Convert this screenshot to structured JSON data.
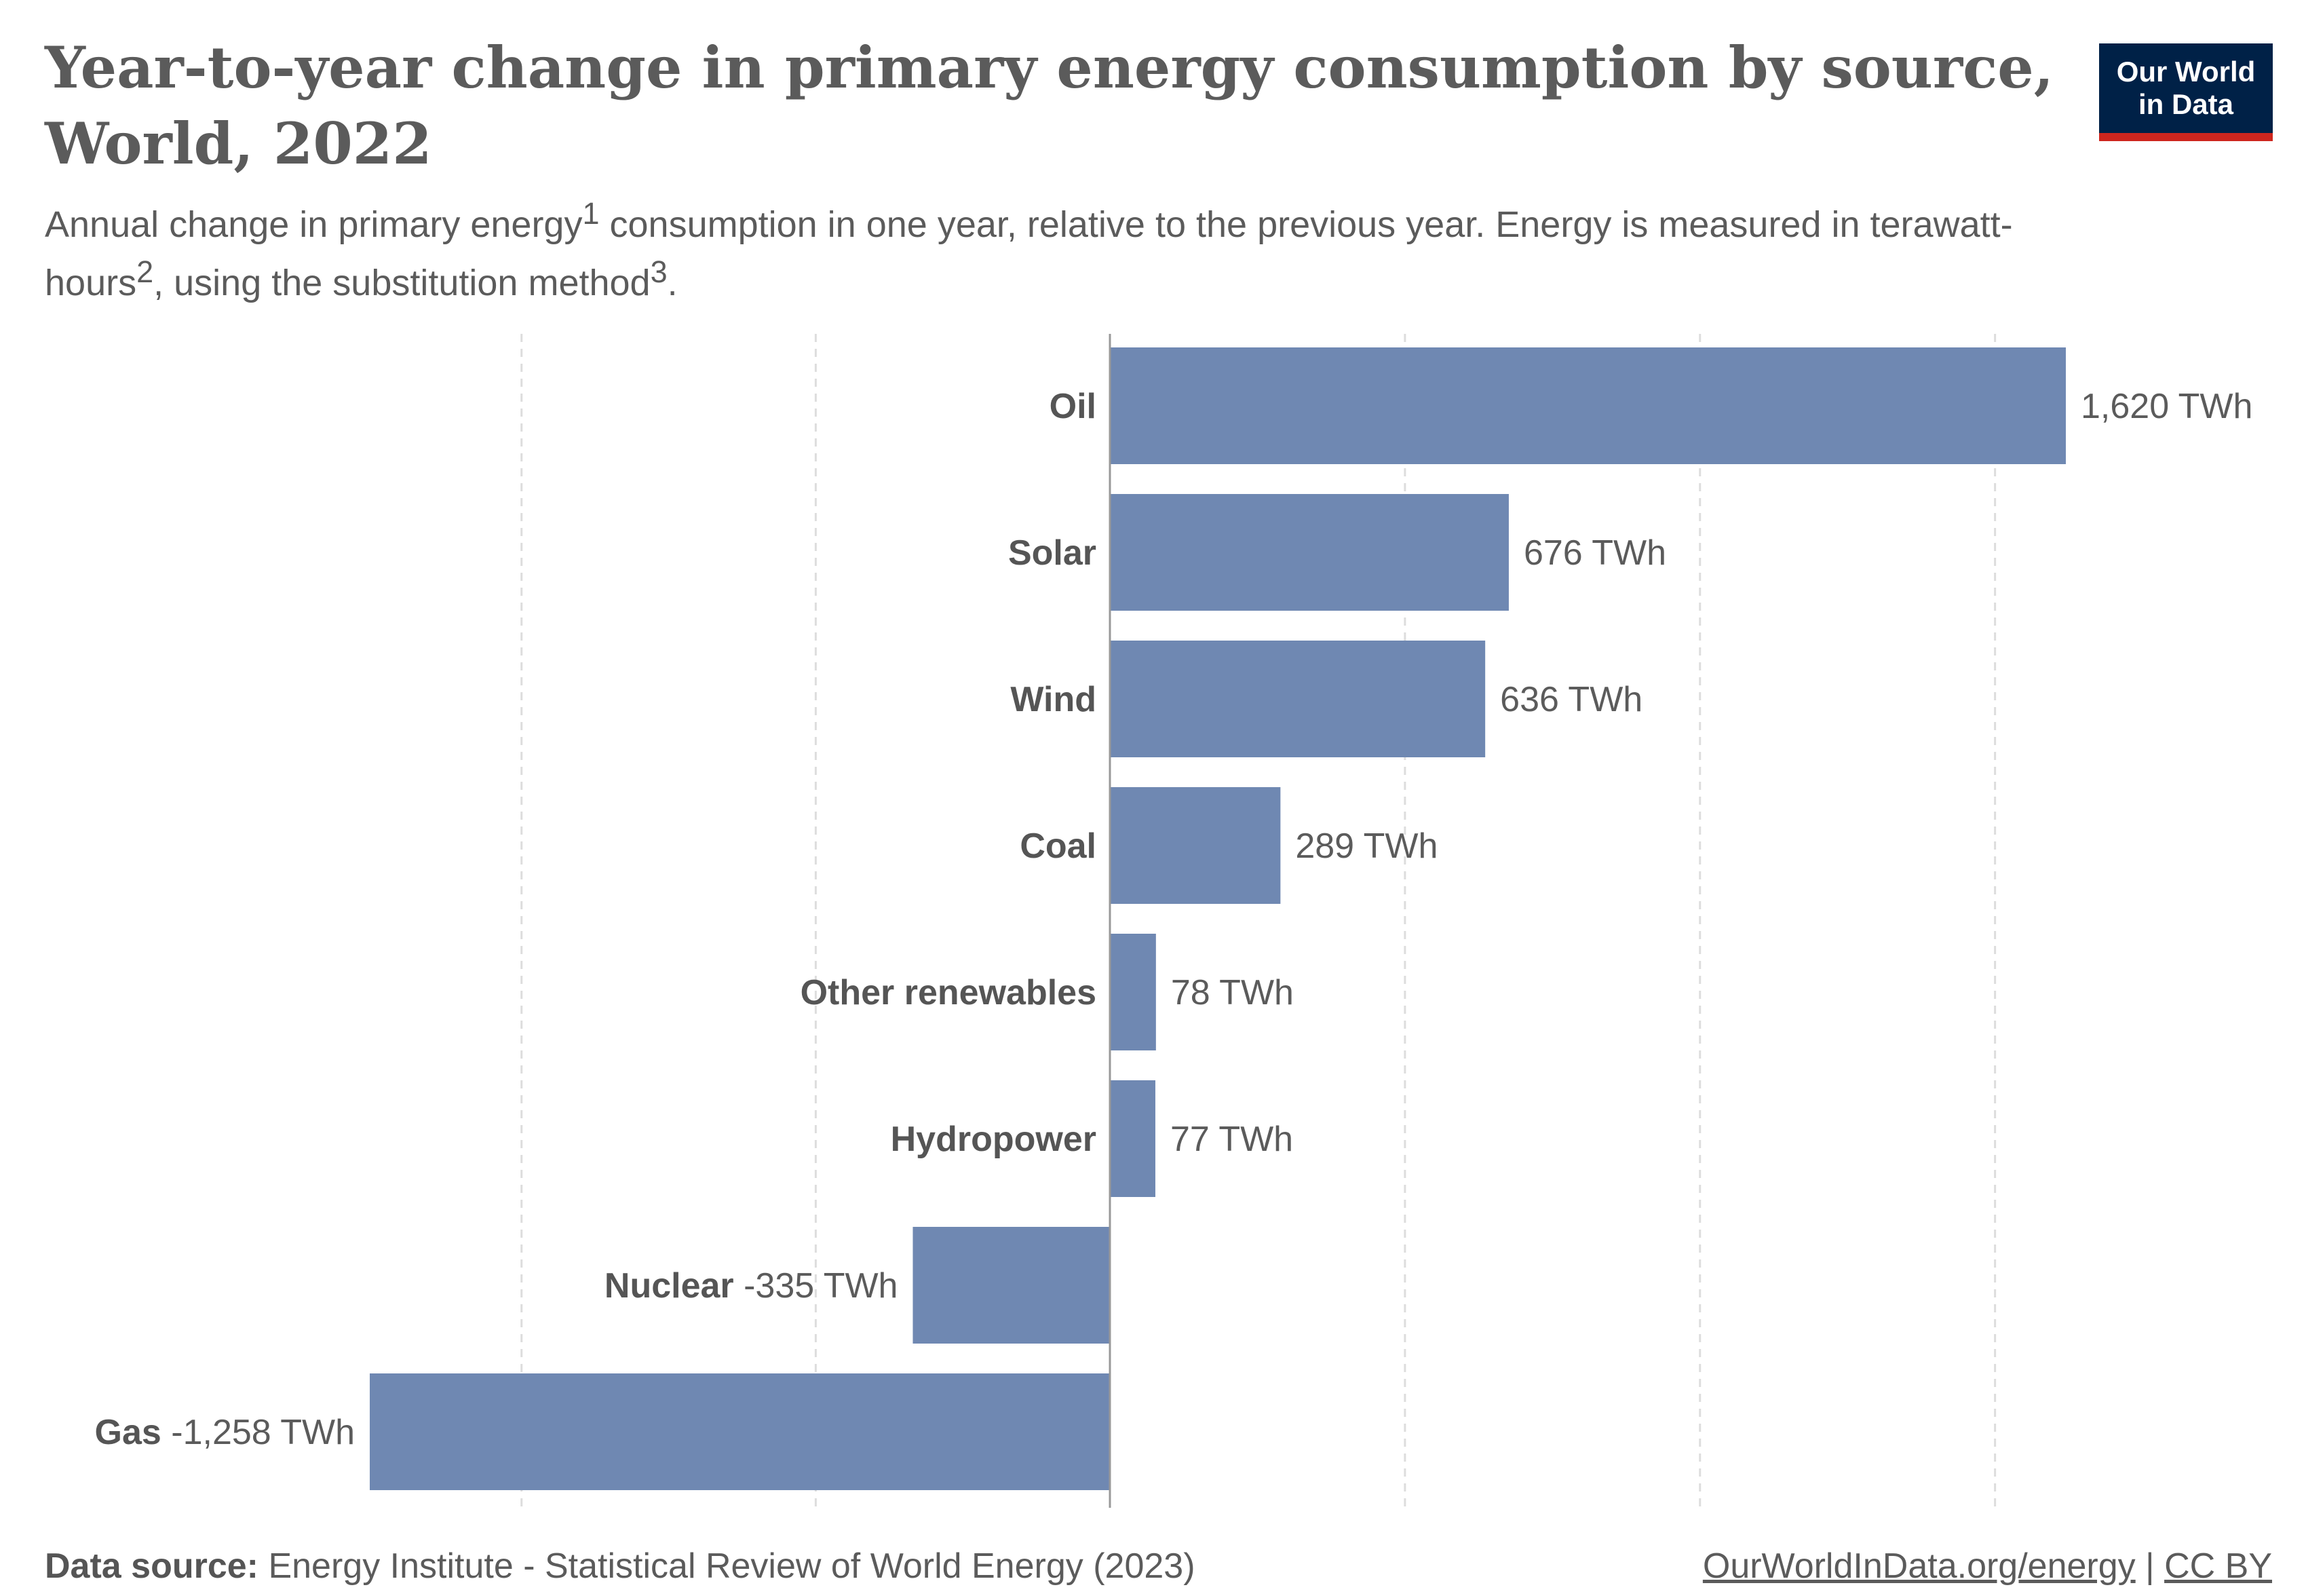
{
  "header": {
    "title": "Year-to-year change in primary energy consumption by source, World, 2022",
    "subtitle_part1": "Annual change in primary energy",
    "sup1": "1",
    "subtitle_part2": " consumption in one year, relative to the previous year. Energy is measured in terawatt-hours",
    "sup2": "2",
    "subtitle_part3": ", using the substitution method",
    "sup3": "3",
    "subtitle_part4": "."
  },
  "logo": {
    "line1": "Our World",
    "line2": "in Data",
    "bg_color": "#002147",
    "accent_color": "#ce261e"
  },
  "footer": {
    "source_label": "Data source:",
    "source_text": " Energy Institute - Statistical Review of World Energy (2023)",
    "link_text": "OurWorldInData.org/energy",
    "separator": " | ",
    "license": "CC BY"
  },
  "chart_data": {
    "type": "bar",
    "orientation": "horizontal",
    "categories": [
      "Oil",
      "Solar",
      "Wind",
      "Coal",
      "Other renewables",
      "Hydropower",
      "Nuclear",
      "Gas"
    ],
    "values": [
      1620,
      676,
      636,
      289,
      78,
      77,
      -335,
      -1258
    ],
    "value_labels": [
      "1,620 TWh",
      "676 TWh",
      "636 TWh",
      "289 TWh",
      "78 TWh",
      "77 TWh",
      "-335 TWh",
      "-1,258 TWh"
    ],
    "unit": "TWh",
    "xlim": [
      -1258,
      1620
    ],
    "grid_values": [
      -1000,
      -500,
      500,
      1000,
      1500
    ],
    "grid": true,
    "bar_color": "#6f88b2"
  }
}
